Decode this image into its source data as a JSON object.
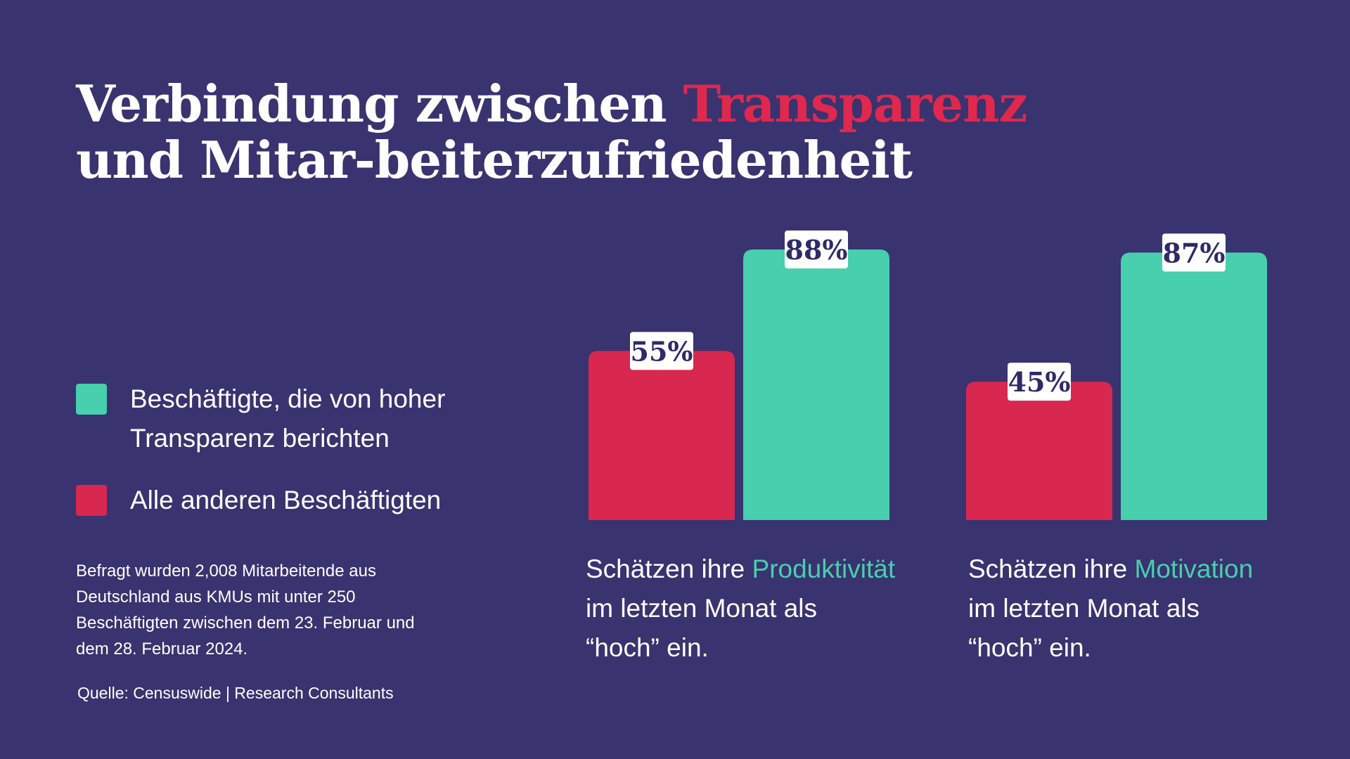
{
  "title": {
    "line1_prefix": "Verbindung zwischen ",
    "line1_highlight": "Transparenz",
    "line2": "und Mitar-beiterzufriedenheit"
  },
  "legend": [
    {
      "label_line1": "Beschäftigte, die von hoher",
      "label_line2": "Transparenz berichten",
      "color": "#47cfae"
    },
    {
      "label_line1": "Alle anderen Beschäftigten",
      "label_line2": "",
      "color": "#d8284f"
    }
  ],
  "note": {
    "line1": "Befragt wurden 2,008 Mitarbeitende aus",
    "line2": "Deutschland aus KMUs mit unter 250",
    "line3": "Beschäftigten zwischen dem 23. Februar und",
    "line4": "dem 28. Februar 2024."
  },
  "source": "Quelle: Censuswide | Research Consultants",
  "captions": [
    {
      "prefix": "Schätzen ihre ",
      "highlight": "Produktivität",
      "line2": "im letzten Monat als",
      "line3": "“hoch” ein."
    },
    {
      "prefix": "Schätzen ihre ",
      "highlight": "Motivation",
      "line2": "im letzten Monat als",
      "line3": "“hoch” ein."
    }
  ],
  "colors": {
    "background": "#39336f",
    "accent_red": "#d8284f",
    "accent_green": "#47cfae",
    "text": "#ffffff",
    "label_text": "#2f2a66"
  },
  "chart_data": {
    "type": "bar",
    "categories": [
      "Produktivität",
      "Motivation"
    ],
    "series": [
      {
        "name": "Alle anderen Beschäftigten",
        "values": [
          55,
          45
        ],
        "color": "#d8284f"
      },
      {
        "name": "Beschäftigte, die von hoher Transparenz berichten",
        "values": [
          88,
          87
        ],
        "color": "#47cfae"
      }
    ],
    "data_labels": [
      [
        "55%",
        "45%"
      ],
      [
        "88%",
        "87%"
      ]
    ],
    "ylim": [
      0,
      100
    ],
    "unit": "%",
    "grid": false
  }
}
